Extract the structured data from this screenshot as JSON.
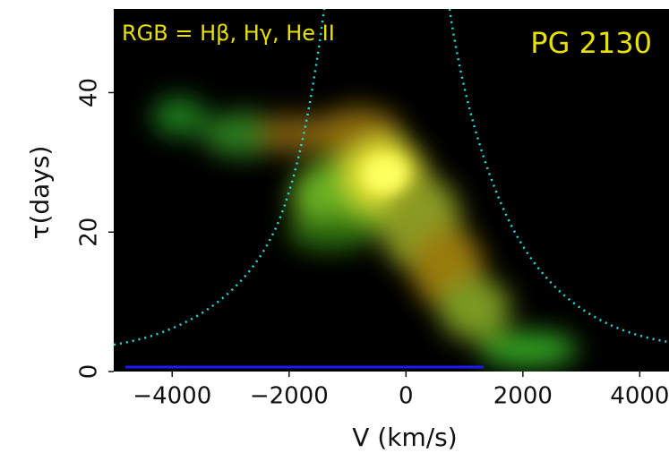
{
  "chart_data": {
    "type": "image",
    "annotations": [
      "RGB = Hβ, Hγ, He II",
      "PG 2130"
    ],
    "xlabel": "V (km/s)",
    "ylabel": "τ(days)",
    "xlim": [
      -5000,
      4500
    ],
    "ylim": [
      0,
      52
    ],
    "xticks": [
      {
        "value": -4000,
        "label": "−4000"
      },
      {
        "value": -2000,
        "label": "−2000"
      },
      0,
      2000,
      4000
    ],
    "yticks": [
      0,
      20,
      40
    ]
  }
}
